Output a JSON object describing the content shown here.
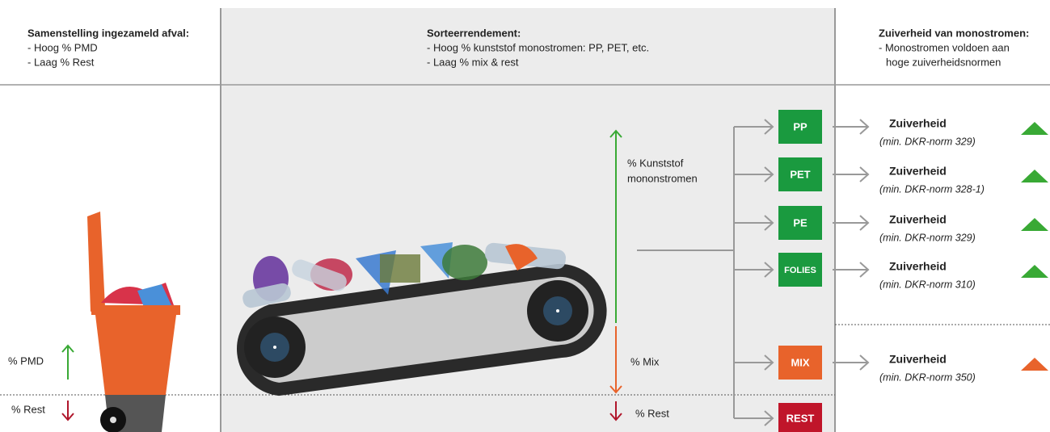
{
  "header": {
    "left": {
      "title": "Samenstelling ingezameld afval:",
      "lines": [
        "- Hoog % PMD",
        "- Laag % Rest"
      ]
    },
    "middle": {
      "title": "Sorteerrendement:",
      "lines": [
        "- Hoog % kunststof monostromen: PP, PET, etc.",
        "- Laag % mix & rest"
      ]
    },
    "right": {
      "title": "Zuiverheid van monostromen:",
      "lines": [
        "- Monostromen voldoen aan",
        "hoge zuiverheidsnormen"
      ]
    }
  },
  "bin_labels": {
    "pmd": "% PMD",
    "rest": "% Rest"
  },
  "sorting_labels": {
    "kunststof": [
      "% Kunststof",
      "mononstromen"
    ],
    "mix": "% Mix",
    "rest": "% Rest"
  },
  "streams": [
    {
      "label": "PP",
      "color": "#1a9a3f",
      "purity": "Zuiverheid",
      "norm": "(min. DKR-norm 329)"
    },
    {
      "label": "PET",
      "color": "#1a9a3f",
      "purity": "Zuiverheid",
      "norm": "(min. DKR-norm 328-1)"
    },
    {
      "label": "PE",
      "color": "#1a9a3f",
      "purity": "Zuiverheid",
      "norm": "(min. DKR-norm 329)"
    },
    {
      "label": "FOLIES",
      "color": "#1a9a3f",
      "purity": "Zuiverheid",
      "norm": "(min. DKR-norm 310)"
    },
    {
      "label": "MIX",
      "color": "#e8632b",
      "purity": "Zuiverheid",
      "norm": "(min. DKR-norm 350)"
    },
    {
      "label": "REST",
      "color": "#c0152a"
    }
  ]
}
